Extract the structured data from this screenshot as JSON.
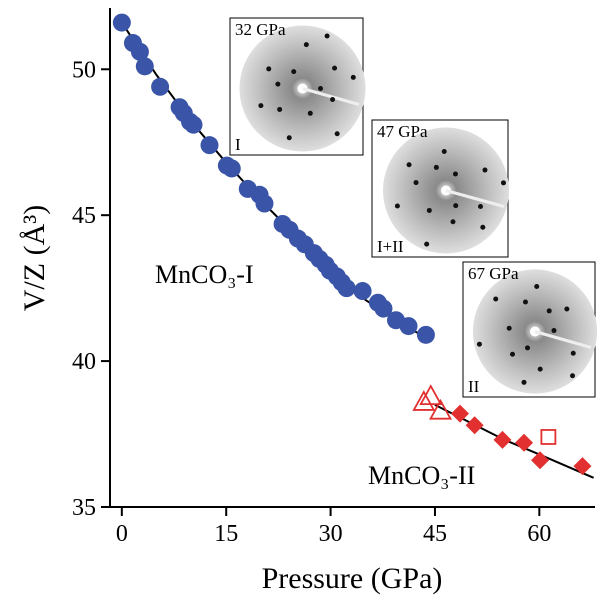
{
  "chart_data": {
    "type": "scatter",
    "x_label": "Pressure (GPa)",
    "y_label": "V/Z (Å³)",
    "xlim": [
      -1.7,
      68
    ],
    "ylim": [
      35,
      52.1
    ],
    "xticks": [
      0,
      15,
      30,
      45,
      60
    ],
    "yticks": [
      35,
      40,
      45,
      50
    ],
    "annotations": [
      "MnCO₃-I",
      "MnCO₃-II"
    ],
    "insets": [
      {
        "pressure_label": "32 GPa",
        "phase_label": "I"
      },
      {
        "pressure_label": "47 GPa",
        "phase_label": "I+II"
      },
      {
        "pressure_label": "67 GPa",
        "phase_label": "II"
      }
    ],
    "series": [
      {
        "color": "#3a55a8",
        "marker": "circle",
        "x": [
          0,
          1.6,
          2.6,
          3.3,
          5.5,
          8.3,
          8.9,
          9.8,
          10.3,
          12.6,
          15.1,
          15.8,
          18.1,
          19.8,
          20.5,
          23.1,
          24.1,
          25.3,
          26.3,
          27.6,
          28.4,
          29.3,
          29.9,
          30.9,
          31.6,
          32.3,
          34.6,
          36.8,
          37.6,
          39.4,
          41.2,
          43.7
        ],
        "values": [
          51.6,
          50.9,
          50.6,
          50.1,
          49.4,
          48.7,
          48.5,
          48.2,
          48.1,
          47.4,
          46.7,
          46.6,
          45.9,
          45.7,
          45.4,
          44.7,
          44.5,
          44.2,
          44.0,
          43.7,
          43.5,
          43.3,
          43.1,
          42.9,
          42.7,
          42.5,
          42.4,
          42.0,
          41.8,
          41.4,
          41.2,
          40.9
        ]
      },
      {
        "color": "#e23030",
        "marker": "triangle-open",
        "x": [
          44.4,
          43.4,
          45.8
        ],
        "values": [
          38.8,
          38.6,
          38.3
        ]
      },
      {
        "color": "#e23030",
        "marker": "diamond",
        "x": [
          48.6,
          50.7,
          54.7,
          57.8,
          60.1,
          66.2
        ],
        "values": [
          38.2,
          37.8,
          37.3,
          37.2,
          36.6,
          36.4
        ]
      },
      {
        "color": "#e23030",
        "marker": "square-open",
        "x": [
          61.3
        ],
        "values": [
          37.4
        ]
      },
      {
        "color": "#000000",
        "marker": "line",
        "x": [
          0,
          5,
          10,
          15,
          20,
          25,
          30,
          35,
          40,
          44.5
        ],
        "values": [
          51.6,
          49.8,
          48.2,
          46.8,
          45.5,
          44.3,
          43.1,
          42.1,
          41.3,
          40.7
        ]
      },
      {
        "color": "#000000",
        "marker": "line",
        "x": [
          45,
          50,
          55,
          60,
          67.8
        ],
        "values": [
          38.5,
          37.9,
          37.3,
          36.8,
          36.0
        ]
      }
    ]
  }
}
